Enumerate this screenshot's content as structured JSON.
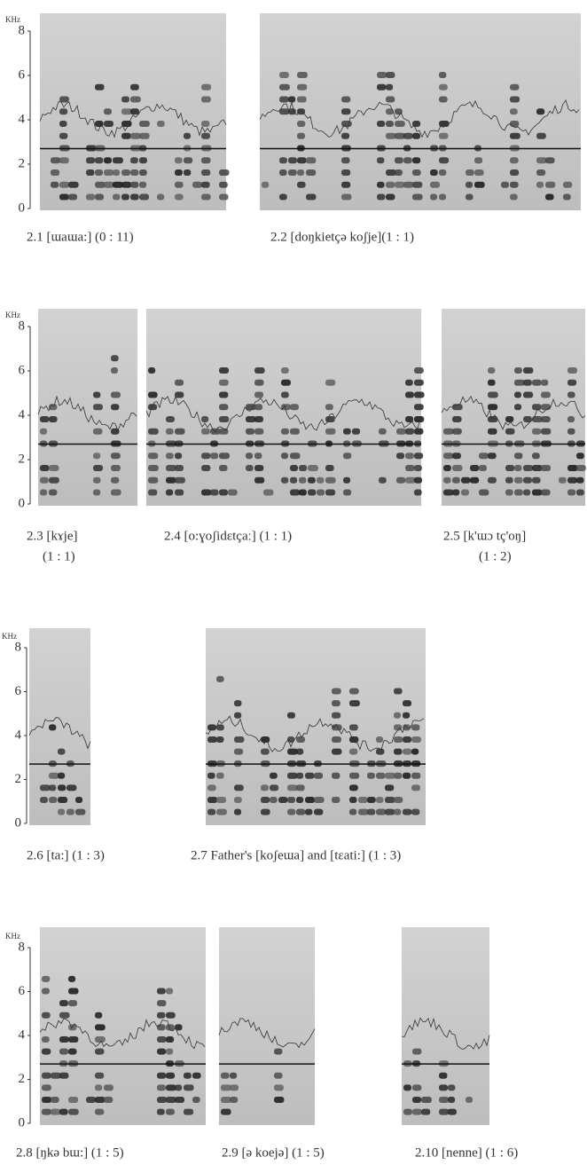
{
  "figure": {
    "rows": [
      {
        "unit": "KHz",
        "ticks": [
          "8",
          "6",
          "4",
          "2",
          "0"
        ],
        "panels": [
          {
            "caption": [
              "2.1 [ɯaɯa:]  (0 : 11)"
            ]
          },
          {
            "caption": [
              "2.2 [doŋkietçə koʃje](1 : 1)"
            ]
          }
        ]
      },
      {
        "unit": "KHz",
        "ticks": [
          "8",
          "6",
          "4",
          "2",
          "0"
        ],
        "panels": [
          {
            "caption": [
              "2.3 [kɤje]",
              "(1 : 1)"
            ]
          },
          {
            "caption": [
              "2.4 [o:ɣoʃidɛtçaː]  (1 : 1)"
            ]
          },
          {
            "caption": [
              "2.5 [k'ɯɔ  tç'oŋ]",
              "(1 : 2)"
            ]
          }
        ]
      },
      {
        "unit": "KHz",
        "ticks": [
          "8",
          "6",
          "4",
          "2",
          "0"
        ],
        "panels": [
          {
            "caption": [
              "2.6 [ta:]  (1 : 3)"
            ]
          },
          {
            "caption": [
              "2.7 Father's [koʃeɯa] and [tɛati:]  (1 : 3)"
            ]
          }
        ]
      },
      {
        "unit": "KHz",
        "ticks": [
          "8",
          "6",
          "4",
          "2",
          "0"
        ],
        "panels": [
          {
            "caption": [
              "2.8 [ŋkə bɯ:]  (1 : 5)"
            ]
          },
          {
            "caption": [
              "2.9 [ə koejə]  (1 : 5)"
            ]
          },
          {
            "caption": [
              "2.10 [nenne]  (1 : 6)"
            ]
          }
        ]
      }
    ]
  }
}
